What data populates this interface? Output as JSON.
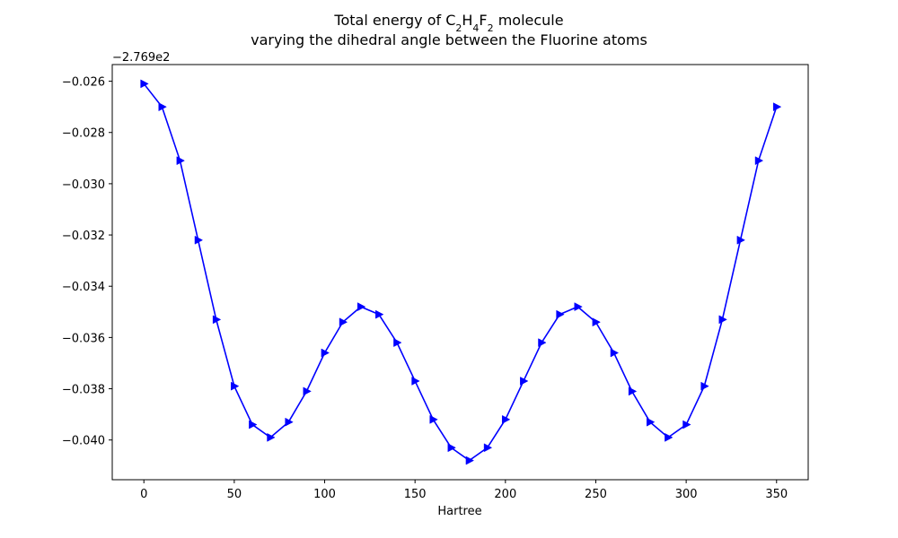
{
  "chart_data": {
    "type": "line",
    "title": {
      "line1_prefix": "Total energy of C",
      "sub1": "2",
      "mid1": "H",
      "sub2": "4",
      "mid2": "F",
      "sub3": "2",
      "line1_suffix": " molecule",
      "line2": "varying the dihedral angle between the Fluorine atoms"
    },
    "xlabel": "Hartree",
    "ylabel": "",
    "y_offset_label": "−2.769e2",
    "xlim": [
      -17.5,
      367.5
    ],
    "ylim": [
      -0.04155,
      -0.02535
    ],
    "x_ticks": [
      0,
      50,
      100,
      150,
      200,
      250,
      300,
      350
    ],
    "x_tick_labels": [
      "0",
      "50",
      "100",
      "150",
      "200",
      "250",
      "300",
      "350"
    ],
    "y_ticks": [
      -0.026,
      -0.028,
      -0.03,
      -0.032,
      -0.034,
      -0.036,
      -0.038,
      -0.04
    ],
    "y_tick_labels": [
      "−0.026",
      "−0.028",
      "−0.030",
      "−0.032",
      "−0.034",
      "−0.036",
      "−0.038",
      "−0.040"
    ],
    "color": "#0000ff",
    "marker": "triangle-right",
    "grid": false,
    "x": [
      0,
      10,
      20,
      30,
      40,
      50,
      60,
      70,
      80,
      90,
      100,
      110,
      120,
      130,
      140,
      150,
      160,
      170,
      180,
      190,
      200,
      210,
      220,
      230,
      240,
      250,
      260,
      270,
      280,
      290,
      300,
      310,
      320,
      330,
      340,
      350
    ],
    "y": [
      -0.0261,
      -0.027,
      -0.0291,
      -0.0322,
      -0.0353,
      -0.0379,
      -0.0394,
      -0.0399,
      -0.0393,
      -0.0381,
      -0.0366,
      -0.0354,
      -0.0348,
      -0.0351,
      -0.0362,
      -0.0377,
      -0.0392,
      -0.0403,
      -0.0408,
      -0.0403,
      -0.0392,
      -0.0377,
      -0.0362,
      -0.0351,
      -0.0348,
      -0.0354,
      -0.0366,
      -0.0381,
      -0.0393,
      -0.0399,
      -0.0394,
      -0.0379,
      -0.0353,
      -0.0322,
      -0.0291,
      -0.027
    ]
  }
}
